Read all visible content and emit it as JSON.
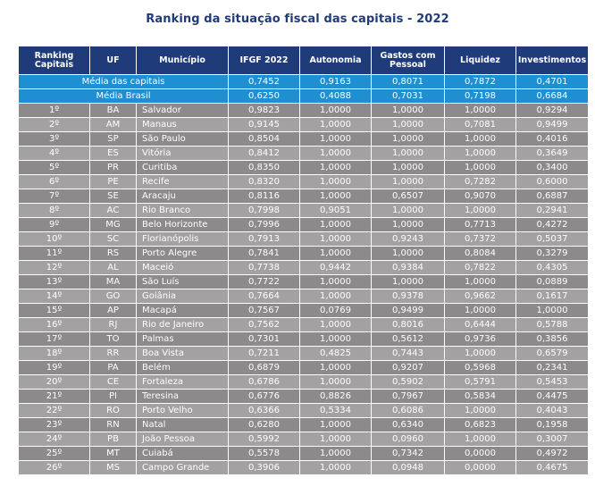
{
  "title": "Ranking da situação fiscal das capitais - 2022",
  "columns": {
    "rank": "Ranking Capitais",
    "uf": "UF",
    "municipio": "Município",
    "igfe": "IFGF 2022",
    "autonomia": "Autonomia",
    "gastos": "Gastos com Pessoal",
    "liquidez": "Liquidez",
    "investimentos": "Investimentos"
  },
  "summary": [
    {
      "label": "Média das capitais",
      "igfe": "0,7452",
      "autonomia": "0,9163",
      "gastos": "0,8071",
      "liquidez": "0,7872",
      "investimentos": "0,4701"
    },
    {
      "label": "Média Brasil",
      "igfe": "0,6250",
      "autonomia": "0,4088",
      "gastos": "0,7031",
      "liquidez": "0,7198",
      "investimentos": "0,6684"
    }
  ],
  "rows": [
    {
      "rank": "1º",
      "uf": "BA",
      "city": "Salvador",
      "igfe": "0,9823",
      "autonomia": "1,0000",
      "gastos": "1,0000",
      "liquidez": "1,0000",
      "investimentos": "0,9294"
    },
    {
      "rank": "2º",
      "uf": "AM",
      "city": "Manaus",
      "igfe": "0,9145",
      "autonomia": "1,0000",
      "gastos": "1,0000",
      "liquidez": "0,7081",
      "investimentos": "0,9499"
    },
    {
      "rank": "3º",
      "uf": "SP",
      "city": "São Paulo",
      "igfe": "0,8504",
      "autonomia": "1,0000",
      "gastos": "1,0000",
      "liquidez": "1,0000",
      "investimentos": "0,4016"
    },
    {
      "rank": "4º",
      "uf": "ES",
      "city": "Vitória",
      "igfe": "0,8412",
      "autonomia": "1,0000",
      "gastos": "1,0000",
      "liquidez": "1,0000",
      "investimentos": "0,3649"
    },
    {
      "rank": "5º",
      "uf": "PR",
      "city": "Curitiba",
      "igfe": "0,8350",
      "autonomia": "1,0000",
      "gastos": "1,0000",
      "liquidez": "1,0000",
      "investimentos": "0,3400"
    },
    {
      "rank": "6º",
      "uf": "PE",
      "city": "Recife",
      "igfe": "0,8320",
      "autonomia": "1,0000",
      "gastos": "1,0000",
      "liquidez": "0,7282",
      "investimentos": "0,6000"
    },
    {
      "rank": "7º",
      "uf": "SE",
      "city": "Aracaju",
      "igfe": "0,8116",
      "autonomia": "1,0000",
      "gastos": "0,6507",
      "liquidez": "0,9070",
      "investimentos": "0,6887"
    },
    {
      "rank": "8º",
      "uf": "AC",
      "city": "Rio Branco",
      "igfe": "0,7998",
      "autonomia": "0,9051",
      "gastos": "1,0000",
      "liquidez": "1,0000",
      "investimentos": "0,2941"
    },
    {
      "rank": "9º",
      "uf": "MG",
      "city": "Belo Horizonte",
      "igfe": "0,7996",
      "autonomia": "1,0000",
      "gastos": "1,0000",
      "liquidez": "0,7713",
      "investimentos": "0,4272"
    },
    {
      "rank": "10º",
      "uf": "SC",
      "city": "Florianópolis",
      "igfe": "0,7913",
      "autonomia": "1,0000",
      "gastos": "0,9243",
      "liquidez": "0,7372",
      "investimentos": "0,5037"
    },
    {
      "rank": "11º",
      "uf": "RS",
      "city": "Porto Alegre",
      "igfe": "0,7841",
      "autonomia": "1,0000",
      "gastos": "1,0000",
      "liquidez": "0,8084",
      "investimentos": "0,3279"
    },
    {
      "rank": "12º",
      "uf": "AL",
      "city": "Maceió",
      "igfe": "0,7738",
      "autonomia": "0,9442",
      "gastos": "0,9384",
      "liquidez": "0,7822",
      "investimentos": "0,4305"
    },
    {
      "rank": "13º",
      "uf": "MA",
      "city": "São Luís",
      "igfe": "0,7722",
      "autonomia": "1,0000",
      "gastos": "1,0000",
      "liquidez": "1,0000",
      "investimentos": "0,0889"
    },
    {
      "rank": "14º",
      "uf": "GO",
      "city": "Goiânia",
      "igfe": "0,7664",
      "autonomia": "1,0000",
      "gastos": "0,9378",
      "liquidez": "0,9662",
      "investimentos": "0,1617"
    },
    {
      "rank": "15º",
      "uf": "AP",
      "city": "Macapá",
      "igfe": "0,7567",
      "autonomia": "0,0769",
      "gastos": "0,9499",
      "liquidez": "1,0000",
      "investimentos": "1,0000"
    },
    {
      "rank": "16º",
      "uf": "RJ",
      "city": "Rio de Janeiro",
      "igfe": "0,7562",
      "autonomia": "1,0000",
      "gastos": "0,8016",
      "liquidez": "0,6444",
      "investimentos": "0,5788"
    },
    {
      "rank": "17º",
      "uf": "TO",
      "city": "Palmas",
      "igfe": "0,7301",
      "autonomia": "1,0000",
      "gastos": "0,5612",
      "liquidez": "0,9736",
      "investimentos": "0,3856"
    },
    {
      "rank": "18º",
      "uf": "RR",
      "city": "Boa Vista",
      "igfe": "0,7211",
      "autonomia": "0,4825",
      "gastos": "0,7443",
      "liquidez": "1,0000",
      "investimentos": "0,6579"
    },
    {
      "rank": "19º",
      "uf": "PA",
      "city": "Belém",
      "igfe": "0,6879",
      "autonomia": "1,0000",
      "gastos": "0,9207",
      "liquidez": "0,5968",
      "investimentos": "0,2341"
    },
    {
      "rank": "20º",
      "uf": "CE",
      "city": "Fortaleza",
      "igfe": "0,6786",
      "autonomia": "1,0000",
      "gastos": "0,5902",
      "liquidez": "0,5791",
      "investimentos": "0,5453"
    },
    {
      "rank": "21º",
      "uf": "PI",
      "city": "Teresina",
      "igfe": "0,6776",
      "autonomia": "0,8826",
      "gastos": "0,7967",
      "liquidez": "0,5834",
      "investimentos": "0,4475"
    },
    {
      "rank": "22º",
      "uf": "RO",
      "city": "Porto Velho",
      "igfe": "0,6366",
      "autonomia": "0,5334",
      "gastos": "0,6086",
      "liquidez": "1,0000",
      "investimentos": "0,4043"
    },
    {
      "rank": "23º",
      "uf": "RN",
      "city": "Natal",
      "igfe": "0,6280",
      "autonomia": "1,0000",
      "gastos": "0,6340",
      "liquidez": "0,6823",
      "investimentos": "0,1958"
    },
    {
      "rank": "24º",
      "uf": "PB",
      "city": "João Pessoa",
      "igfe": "0,5992",
      "autonomia": "1,0000",
      "gastos": "0,0960",
      "liquidez": "1,0000",
      "investimentos": "0,3007"
    },
    {
      "rank": "25º",
      "uf": "MT",
      "city": "Cuiabá",
      "igfe": "0,5578",
      "autonomia": "1,0000",
      "gastos": "0,7342",
      "liquidez": "0,0000",
      "investimentos": "0,4972"
    },
    {
      "rank": "26º",
      "uf": "MS",
      "city": "Campo Grande",
      "igfe": "0,3906",
      "autonomia": "1,0000",
      "gastos": "0,0948",
      "liquidez": "0,0000",
      "investimentos": "0,4675"
    }
  ]
}
